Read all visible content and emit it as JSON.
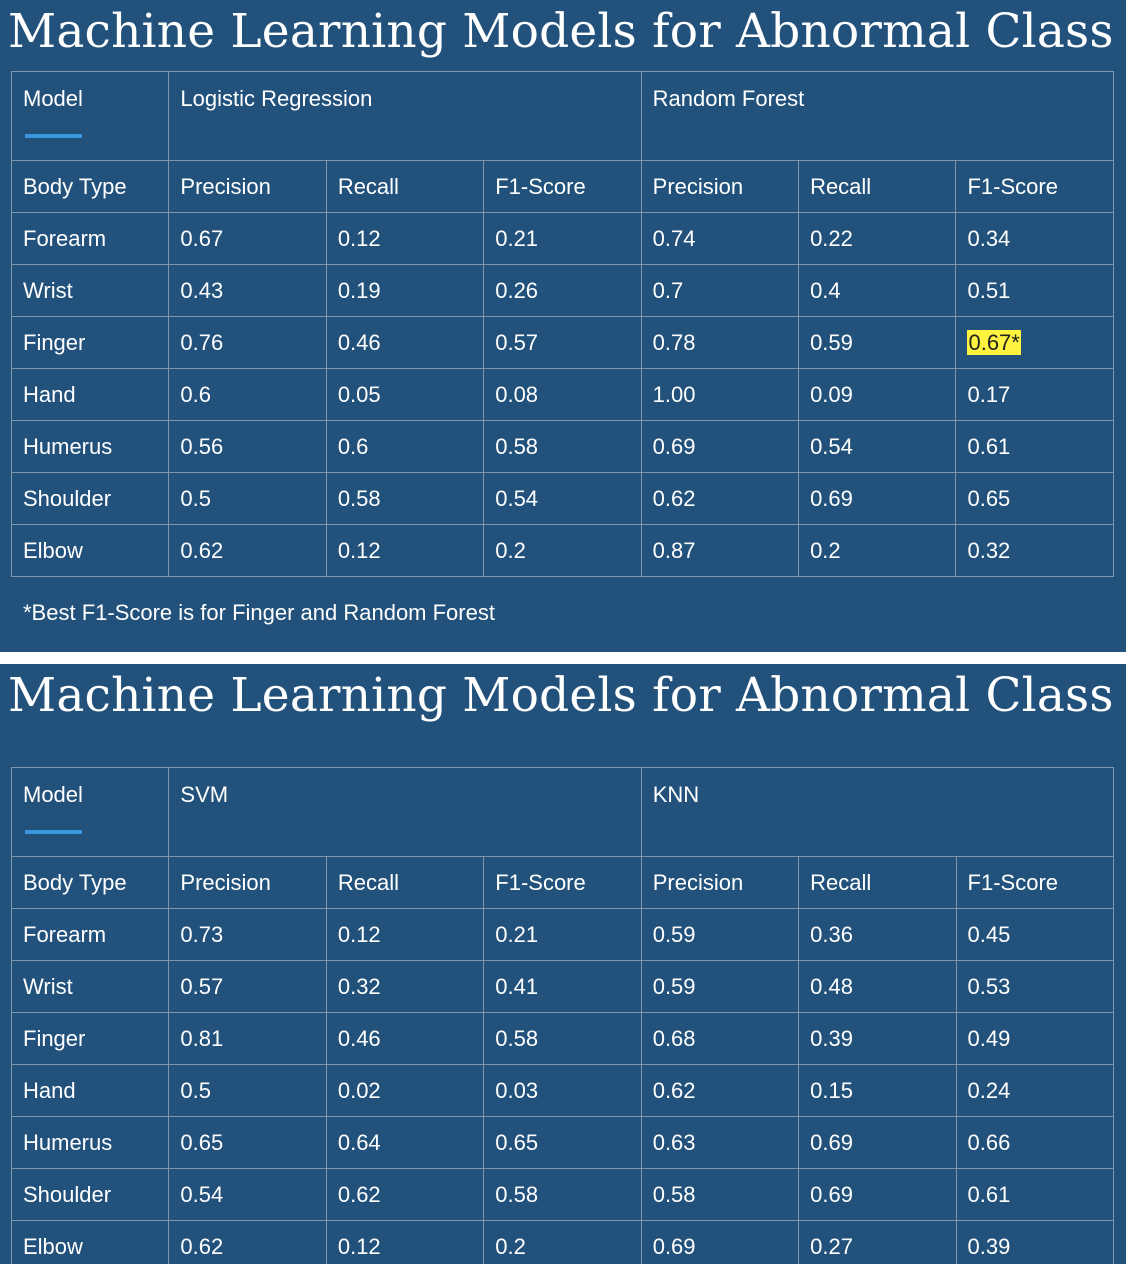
{
  "slides": [
    {
      "title": "Machine Learning Models for Abnormal Class",
      "model_label": "Model",
      "models": [
        "Logistic Regression",
        "Random Forest"
      ],
      "header": [
        "Body Type",
        "Precision",
        "Recall",
        "F1-Score",
        "Precision",
        "Recall",
        "F1-Score"
      ],
      "rows": [
        [
          "Forearm",
          "0.67",
          "0.12",
          "0.21",
          "0.74",
          "0.22",
          "0.34"
        ],
        [
          "Wrist",
          "0.43",
          "0.19",
          "0.26",
          "0.7",
          "0.4",
          "0.51"
        ],
        [
          "Finger",
          "0.76",
          "0.46",
          "0.57",
          "0.78",
          "0.59",
          "0.67*"
        ],
        [
          "Hand",
          "0.6",
          "0.05",
          "0.08",
          "1.00",
          "0.09",
          "0.17"
        ],
        [
          "Humerus",
          "0.56",
          "0.6",
          "0.58",
          "0.69",
          "0.54",
          "0.61"
        ],
        [
          "Shoulder",
          "0.5",
          "0.58",
          "0.54",
          "0.62",
          "0.69",
          "0.65"
        ],
        [
          "Elbow",
          "0.62",
          "0.12",
          "0.2",
          "0.87",
          "0.2",
          "0.32"
        ]
      ],
      "highlight_cell": {
        "row": 2,
        "col": 6,
        "color": "#fff33f"
      },
      "footnote": "*Best F1-Score is for Finger and Random Forest"
    },
    {
      "title": "Machine Learning Models for Abnormal Class",
      "model_label": "Model",
      "models": [
        "SVM",
        "KNN"
      ],
      "header": [
        "Body Type",
        "Precision",
        "Recall",
        "F1-Score",
        "Precision",
        "Recall",
        "F1-Score"
      ],
      "rows": [
        [
          "Forearm",
          "0.73",
          "0.12",
          "0.21",
          "0.59",
          "0.36",
          "0.45"
        ],
        [
          "Wrist",
          "0.57",
          "0.32",
          "0.41",
          "0.59",
          "0.48",
          "0.53"
        ],
        [
          "Finger",
          "0.81",
          "0.46",
          "0.58",
          "0.68",
          "0.39",
          "0.49"
        ],
        [
          "Hand",
          "0.5",
          "0.02",
          "0.03",
          "0.62",
          "0.15",
          "0.24"
        ],
        [
          "Humerus",
          "0.65",
          "0.64",
          "0.65",
          "0.63",
          "0.69",
          "0.66"
        ],
        [
          "Shoulder",
          "0.54",
          "0.62",
          "0.58",
          "0.58",
          "0.69",
          "0.61"
        ],
        [
          "Elbow",
          "0.62",
          "0.12",
          "0.2",
          "0.69",
          "0.27",
          "0.39"
        ]
      ]
    }
  ],
  "colors": {
    "background": "#22527c",
    "grid": "#7e97ad",
    "accent": "#3a96e0",
    "highlight": "#fff33f"
  }
}
